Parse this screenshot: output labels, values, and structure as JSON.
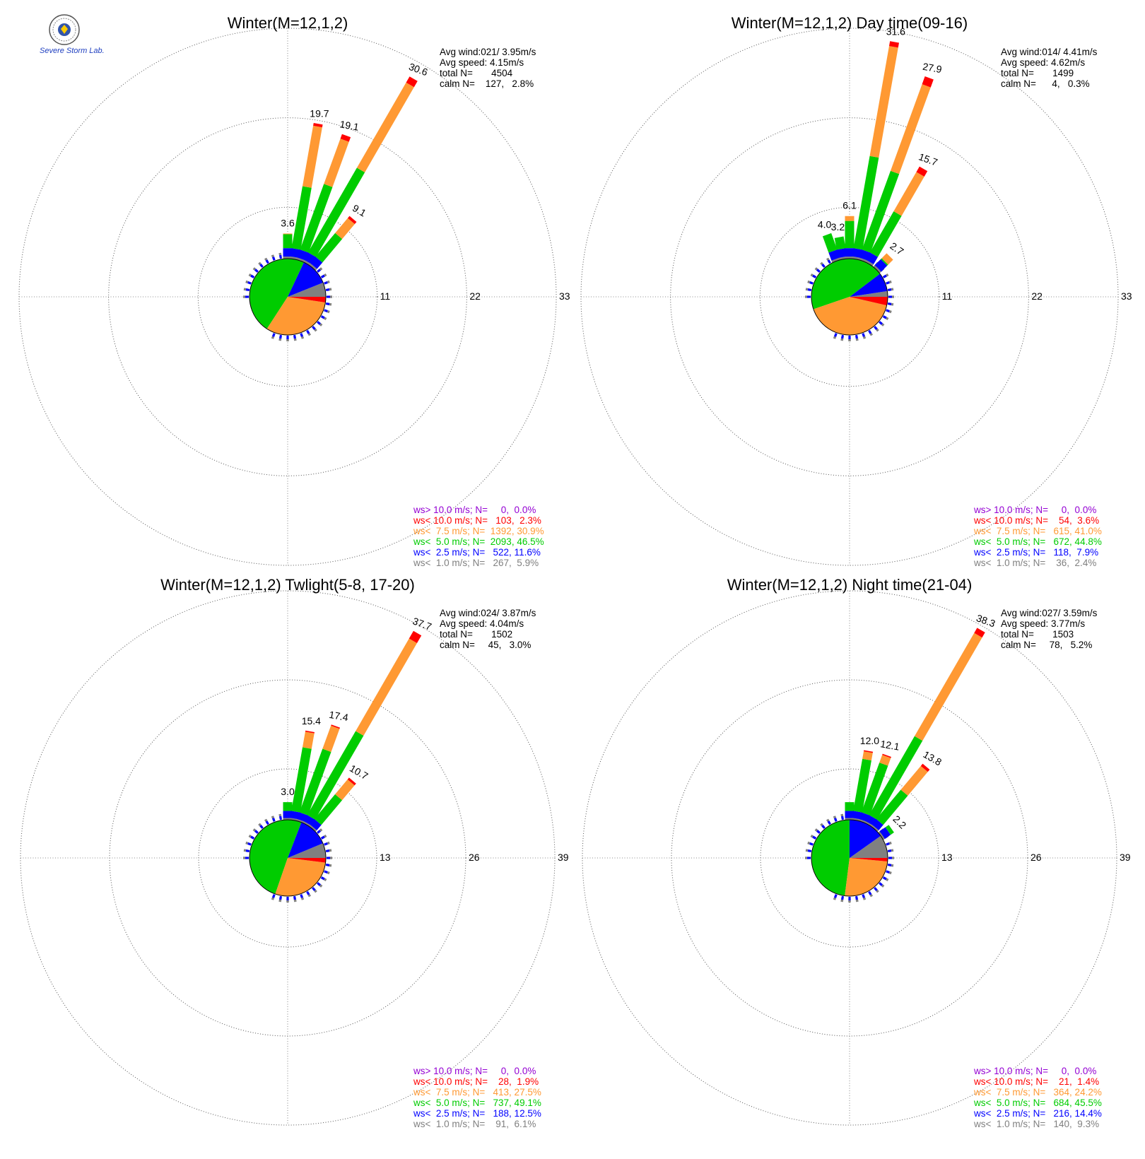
{
  "logo": {
    "text": "Severe Storm Lab."
  },
  "legend_colors": [
    "#9400d3",
    "#ff0000",
    "#ff9933",
    "#00cc00",
    "#0000ff",
    "#808080"
  ],
  "chart_data": [
    {
      "type": "windrose",
      "title": "Winter(M=12,1,2)",
      "info": [
        "Avg wind:021/ 3.95m/s",
        "Avg speed: 4.15m/s",
        "total N=       4504",
        "calm N=    127,   2.8%"
      ],
      "rmax": 33,
      "ticks": [
        "11",
        "22",
        "33"
      ],
      "petals": [
        {
          "dir": 0,
          "total": 3.6,
          "label": "3.6",
          "parts": [
            0.3,
            1.2,
            2.0,
            0.1,
            0,
            0
          ]
        },
        {
          "dir": 10,
          "total": 19.7,
          "label": "19.7",
          "parts": [
            0.3,
            1.2,
            9.0,
            8.8,
            0.4,
            0
          ]
        },
        {
          "dir": 20,
          "total": 19.1,
          "label": "19.1",
          "parts": [
            0.3,
            1.2,
            10.0,
            6.9,
            0.7,
            0
          ]
        },
        {
          "dir": 30,
          "total": 30.6,
          "label": "30.6",
          "parts": [
            0.3,
            1.2,
            14.0,
            14.1,
            1.0,
            0
          ]
        },
        {
          "dir": 40,
          "total": 9.1,
          "label": "9.1",
          "parts": [
            0.3,
            1.2,
            4.4,
            2.8,
            0.4,
            0
          ]
        }
      ],
      "pie": [
        5.9,
        11.6,
        46.5,
        30.9,
        2.3,
        0.0
      ],
      "pie_start": 90,
      "legend": [
        "ws> 10.0 m/s; N=     0,  0.0%",
        "ws< 10.0 m/s; N=   103,  2.3%",
        "ws<  7.5 m/s; N=  1392, 30.9%",
        "ws<  5.0 m/s; N=  2093, 46.5%",
        "ws<  2.5 m/s; N=   522, 11.6%",
        "ws<  1.0 m/s; N=   267,  5.9%"
      ]
    },
    {
      "type": "windrose",
      "title": "Winter(M=12,1,2) Day time(09-16)",
      "info": [
        "Avg wind:014/ 4.41m/s",
        "Avg speed: 4.62m/s",
        "total N=       1499",
        "calm N=      4,   0.3%"
      ],
      "rmax": 33,
      "ticks": [
        "11",
        "22",
        "33"
      ],
      "petals": [
        {
          "dir": -20,
          "total": 4.0,
          "label": "4.0",
          "parts": [
            0.3,
            1.2,
            2.5,
            0,
            0,
            0
          ]
        },
        {
          "dir": -10,
          "total": 3.2,
          "label": "3.2",
          "parts": [
            0.3,
            1.2,
            1.7,
            0,
            0,
            0
          ]
        },
        {
          "dir": 0,
          "total": 6.1,
          "label": "6.1",
          "parts": [
            0.3,
            1.2,
            3.9,
            0.7,
            0,
            0
          ]
        },
        {
          "dir": 10,
          "total": 31.6,
          "label": "31.6",
          "parts": [
            0.3,
            1.2,
            13.4,
            16.0,
            0.7,
            0
          ]
        },
        {
          "dir": 20,
          "total": 27.9,
          "label": "27.9",
          "parts": [
            0.3,
            1.2,
            12.0,
            13.2,
            1.2,
            0
          ]
        },
        {
          "dir": 30,
          "total": 15.7,
          "label": "15.7",
          "parts": [
            0.3,
            1.2,
            6.8,
            6.5,
            0.9,
            0
          ]
        },
        {
          "dir": 45,
          "total": 2.7,
          "label": "2.7",
          "parts": [
            0.3,
            1.2,
            0.2,
            1.0,
            0,
            0
          ]
        }
      ],
      "pie": [
        2.4,
        7.9,
        44.8,
        41.0,
        3.6,
        0.0
      ],
      "pie_start": 90,
      "legend": [
        "ws> 10.0 m/s; N=     0,  0.0%",
        "ws< 10.0 m/s; N=    54,  3.6%",
        "ws<  7.5 m/s; N=   615, 41.0%",
        "ws<  5.0 m/s; N=   672, 44.8%",
        "ws<  2.5 m/s; N=   118,  7.9%",
        "ws<  1.0 m/s; N=    36,  2.4%"
      ]
    },
    {
      "type": "windrose",
      "title": "Winter(M=12,1,2) Twlight(5-8, 17-20)",
      "info": [
        "Avg wind:024/ 3.87m/s",
        "Avg speed: 4.04m/s",
        "total N=       1502",
        "calm N=     45,   3.0%"
      ],
      "rmax": 39,
      "ticks": [
        "13",
        "26",
        "39"
      ],
      "petals": [
        {
          "dir": 0,
          "total": 3.0,
          "label": "3.0",
          "parts": [
            0.3,
            1.2,
            1.5,
            0,
            0,
            0
          ]
        },
        {
          "dir": 10,
          "total": 15.4,
          "label": "15.4",
          "parts": [
            0.3,
            1.2,
            11.0,
            2.7,
            0.2,
            0
          ]
        },
        {
          "dir": 20,
          "total": 17.4,
          "label": "17.4",
          "parts": [
            0.3,
            1.2,
            11.5,
            4.2,
            0.2,
            0
          ]
        },
        {
          "dir": 30,
          "total": 37.7,
          "label": "37.7",
          "parts": [
            0.3,
            1.2,
            16.5,
            18.2,
            1.5,
            0
          ]
        },
        {
          "dir": 40,
          "total": 10.7,
          "label": "10.7",
          "parts": [
            0.3,
            1.2,
            5.5,
            3.3,
            0.4,
            0
          ]
        }
      ],
      "pie": [
        6.1,
        12.5,
        49.1,
        27.5,
        1.9,
        0.0
      ],
      "pie_start": 90,
      "legend": [
        "ws> 10.0 m/s; N=     0,  0.0%",
        "ws< 10.0 m/s; N=    28,  1.9%",
        "ws<  7.5 m/s; N=   413, 27.5%",
        "ws<  5.0 m/s; N=   737, 49.1%",
        "ws<  2.5 m/s; N=   188, 12.5%",
        "ws<  1.0 m/s; N=    91,  6.1%"
      ]
    },
    {
      "type": "windrose",
      "title": "Winter(M=12,1,2) Night time(21-04)",
      "info": [
        "Avg wind:027/ 3.59m/s",
        "Avg speed: 3.77m/s",
        "total N=       1503",
        "calm N=     78,   5.2%"
      ],
      "rmax": 39,
      "ticks": [
        "13",
        "26",
        "39"
      ],
      "petals": [
        {
          "dir": 0,
          "total": 3.0,
          "label": "",
          "parts": [
            0.3,
            1.2,
            1.5,
            0,
            0,
            0
          ]
        },
        {
          "dir": 10,
          "total": 12.0,
          "label": "12.0",
          "parts": [
            0.3,
            1.2,
            9.0,
            1.3,
            0.2,
            0
          ]
        },
        {
          "dir": 20,
          "total": 12.1,
          "label": "12.1",
          "parts": [
            0.3,
            1.2,
            9.0,
            1.4,
            0.2,
            0
          ]
        },
        {
          "dir": 30,
          "total": 38.3,
          "label": "38.3",
          "parts": [
            0.3,
            1.2,
            15.5,
            20.3,
            1.0,
            0
          ]
        },
        {
          "dir": 40,
          "total": 13.8,
          "label": "13.8",
          "parts": [
            0.3,
            1.2,
            6.5,
            5.3,
            0.5,
            0
          ]
        },
        {
          "dir": 55,
          "total": 2.2,
          "label": "2.2",
          "parts": [
            0.3,
            1.2,
            0.7,
            0,
            0,
            0
          ]
        }
      ],
      "pie": [
        9.3,
        14.4,
        45.5,
        24.2,
        1.4,
        0.0
      ],
      "pie_start": 90,
      "legend": [
        "ws> 10.0 m/s; N=     0,  0.0%",
        "ws< 10.0 m/s; N=    21,  1.4%",
        "ws<  7.5 m/s; N=   364, 24.2%",
        "ws<  5.0 m/s; N=   684, 45.5%",
        "ws<  2.5 m/s; N=   216, 14.4%",
        "ws<  1.0 m/s; N=   140,  9.3%"
      ]
    }
  ]
}
